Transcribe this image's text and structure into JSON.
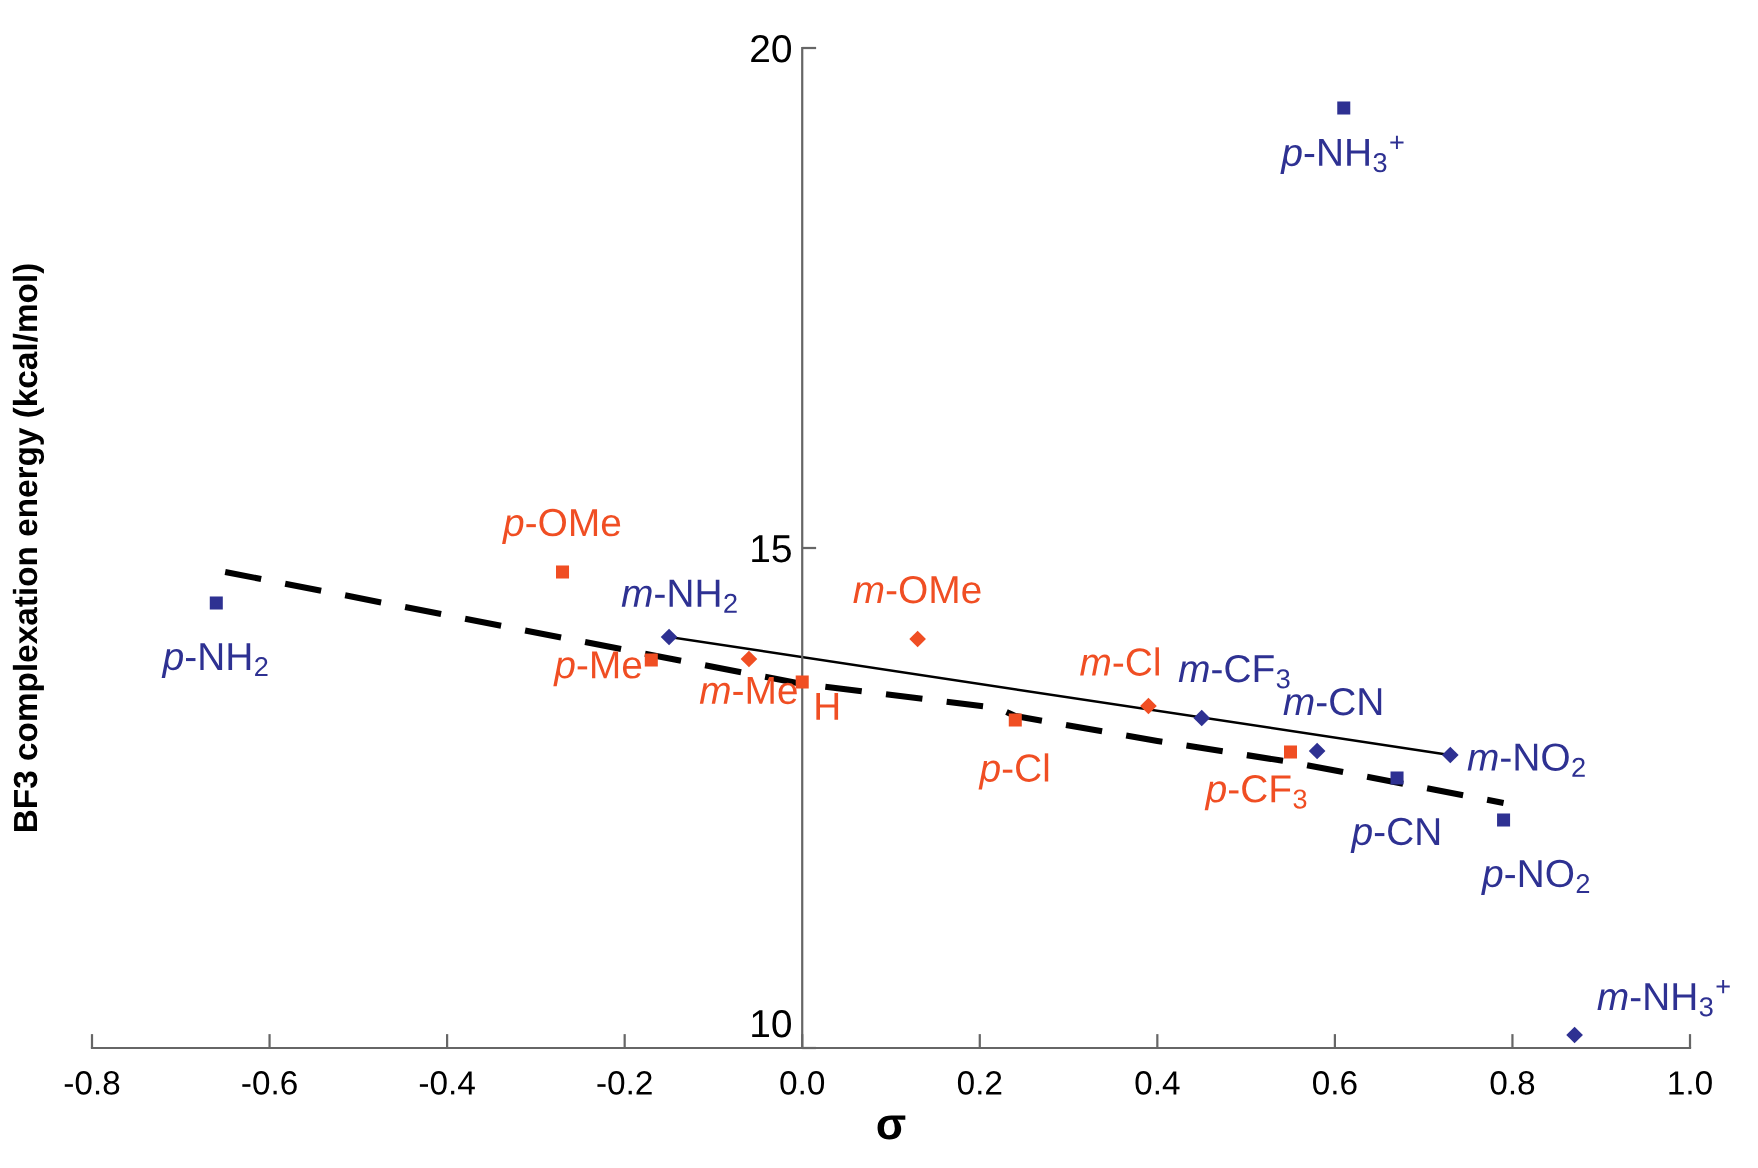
{
  "chart_data": {
    "type": "scatter",
    "xlabel": "σ",
    "ylabel": "BF3 complexation energy (kcal/mol)",
    "xlim": [
      -0.8,
      1.0
    ],
    "xticks": [
      {
        "value": -0.8,
        "label": "-0.8"
      },
      {
        "value": -0.6,
        "label": "-0.6"
      },
      {
        "value": -0.4,
        "label": "-0.4"
      },
      {
        "value": -0.2,
        "label": "-0.2"
      },
      {
        "value": 0.0,
        "label": "0.0"
      },
      {
        "value": 0.2,
        "label": "0.2"
      },
      {
        "value": 0.4,
        "label": "0.4"
      },
      {
        "value": 0.6,
        "label": "0.6"
      },
      {
        "value": 0.8,
        "label": "0.8"
      },
      {
        "value": 1.0,
        "label": "1.0"
      }
    ],
    "ylim": [
      10,
      20
    ],
    "yticks": [
      10,
      15,
      20
    ],
    "grid": false,
    "series": [
      {
        "marker": "square",
        "color": "#2e3192",
        "x": [
          -0.66,
          0.67,
          0.79,
          0.61
        ],
        "values": [
          14.45,
          12.7,
          12.28,
          19.4
        ]
      },
      {
        "marker": "diamond",
        "color": "#2e3192",
        "x": [
          -0.15,
          0.45,
          0.58,
          0.73,
          0.87
        ],
        "values": [
          14.11,
          13.3,
          12.97,
          12.93,
          10.13
        ]
      },
      {
        "marker": "square",
        "color": "#f04e23",
        "x": [
          -0.27,
          -0.17,
          0.0,
          0.24,
          0.55
        ],
        "values": [
          14.76,
          13.88,
          13.66,
          13.28,
          12.96
        ]
      },
      {
        "marker": "diamond",
        "color": "#f04e23",
        "x": [
          -0.06,
          0.13,
          0.39
        ],
        "values": [
          13.89,
          14.09,
          13.42
        ]
      },
      {
        "type": "line",
        "marker": "none",
        "line_style": "solid",
        "color": "#000000",
        "x": [
          -0.15,
          0.73
        ],
        "values": [
          14.11,
          12.93
        ]
      },
      {
        "type": "line",
        "marker": "none",
        "line_style": "dashed",
        "color": "#000000",
        "x": [
          -0.65,
          -0.17,
          0.0,
          0.22,
          0.24,
          0.4,
          0.55,
          0.79
        ],
        "values": [
          14.76,
          13.93,
          13.64,
          13.4,
          13.32,
          13.07,
          12.86,
          12.45
        ]
      }
    ],
    "annotations": [
      {
        "text": "p-NH$_{2}$",
        "x": -0.66,
        "y": 14.45
      },
      {
        "text": "p-OMe",
        "x": -0.27,
        "y": 14.76
      },
      {
        "text": "m-NH$_{2}$",
        "x": -0.15,
        "y": 14.11
      },
      {
        "text": "p-Me",
        "x": -0.17,
        "y": 13.88
      },
      {
        "text": "m-Me",
        "x": -0.06,
        "y": 13.89
      },
      {
        "text": "H",
        "x": 0.0,
        "y": 13.66
      },
      {
        "text": "m-OMe",
        "x": 0.13,
        "y": 14.09
      },
      {
        "text": "p-Cl",
        "x": 0.24,
        "y": 13.28
      },
      {
        "text": "m-Cl",
        "x": 0.39,
        "y": 13.42
      },
      {
        "text": "m-CF$_{3}$",
        "x": 0.45,
        "y": 13.3
      },
      {
        "text": "p-CF$_{3}$",
        "x": 0.55,
        "y": 12.96
      },
      {
        "text": "m-CN",
        "x": 0.58,
        "y": 12.97
      },
      {
        "text": "p-CN",
        "x": 0.67,
        "y": 12.7
      },
      {
        "text": "m-NO$_{2}$",
        "x": 0.73,
        "y": 12.93
      },
      {
        "text": "p-NO$_{2}$",
        "x": 0.79,
        "y": 12.28
      },
      {
        "text": "p-NH$_{3}$$^{+}$",
        "x": 0.61,
        "y": 19.4
      },
      {
        "text": "m-NH$_{3}$$^{+}$",
        "x": 0.87,
        "y": 10.13
      }
    ]
  }
}
